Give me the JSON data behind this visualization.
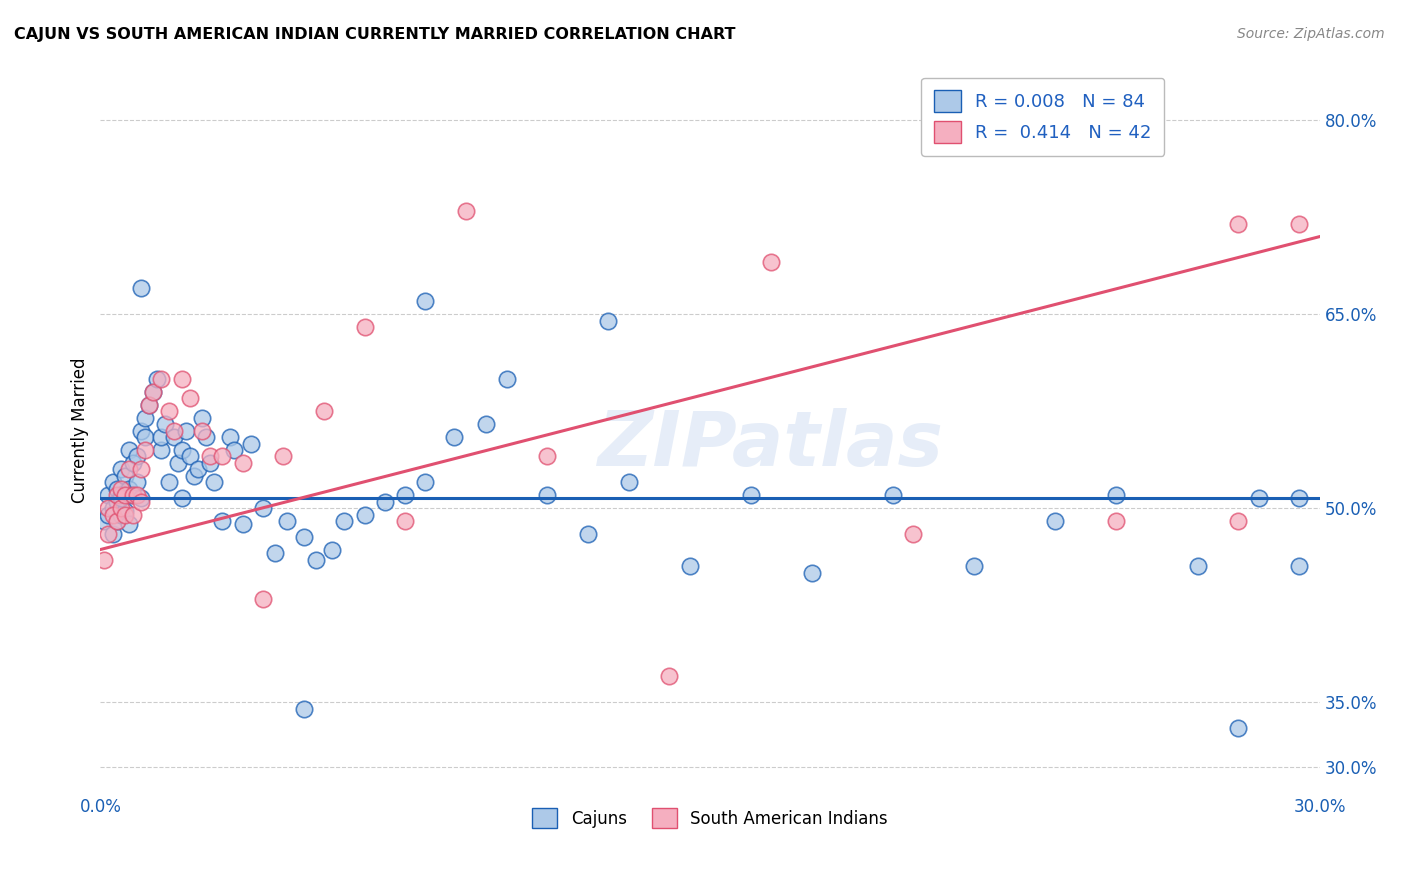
{
  "title": "CAJUN VS SOUTH AMERICAN INDIAN CURRENTLY MARRIED CORRELATION CHART",
  "source": "Source: ZipAtlas.com",
  "ylabel": "Currently Married",
  "xlim": [
    0.0,
    0.3
  ],
  "ylim": [
    0.28,
    0.84
  ],
  "ytick_vals": [
    0.3,
    0.35,
    0.5,
    0.65,
    0.8
  ],
  "ytick_labels": [
    "30.0%",
    "35.0%",
    "50.0%",
    "65.0%",
    "80.0%"
  ],
  "xtick_vals": [
    0.0,
    0.05,
    0.1,
    0.15,
    0.2,
    0.25,
    0.3
  ],
  "xtick_labels": [
    "0.0%",
    "",
    "",
    "",
    "",
    "",
    "30.0%"
  ],
  "cajun_R": 0.008,
  "cajun_N": 84,
  "sai_R": 0.414,
  "sai_N": 42,
  "cajun_color": "#adc9e8",
  "sai_color": "#f5afc0",
  "cajun_line_color": "#1a5fb4",
  "sai_line_color": "#e05070",
  "legend_color": "#2060c0",
  "background_color": "#ffffff",
  "grid_color": "#cccccc",
  "watermark": "ZIPatlas",
  "cajun_line_y0": 0.508,
  "cajun_line_y1": 0.508,
  "sai_line_y0": 0.468,
  "sai_line_y1": 0.71,
  "cajun_x": [
    0.001,
    0.002,
    0.002,
    0.003,
    0.003,
    0.003,
    0.004,
    0.004,
    0.004,
    0.005,
    0.005,
    0.005,
    0.006,
    0.006,
    0.006,
    0.007,
    0.007,
    0.007,
    0.008,
    0.008,
    0.009,
    0.009,
    0.01,
    0.01,
    0.011,
    0.011,
    0.012,
    0.013,
    0.014,
    0.015,
    0.015,
    0.016,
    0.017,
    0.018,
    0.019,
    0.02,
    0.021,
    0.022,
    0.023,
    0.024,
    0.025,
    0.026,
    0.027,
    0.028,
    0.03,
    0.032,
    0.033,
    0.035,
    0.037,
    0.04,
    0.043,
    0.046,
    0.05,
    0.053,
    0.057,
    0.06,
    0.065,
    0.07,
    0.075,
    0.08,
    0.087,
    0.095,
    0.1,
    0.11,
    0.12,
    0.13,
    0.145,
    0.16,
    0.175,
    0.195,
    0.215,
    0.235,
    0.25,
    0.27,
    0.28,
    0.285,
    0.295,
    0.295,
    0.125,
    0.08,
    0.05,
    0.02,
    0.01,
    0.005
  ],
  "cajun_y": [
    0.49,
    0.51,
    0.495,
    0.52,
    0.5,
    0.48,
    0.515,
    0.505,
    0.49,
    0.53,
    0.51,
    0.495,
    0.525,
    0.51,
    0.498,
    0.545,
    0.515,
    0.488,
    0.535,
    0.51,
    0.54,
    0.52,
    0.56,
    0.67,
    0.57,
    0.555,
    0.58,
    0.59,
    0.6,
    0.545,
    0.555,
    0.565,
    0.52,
    0.555,
    0.535,
    0.545,
    0.56,
    0.54,
    0.525,
    0.53,
    0.57,
    0.555,
    0.535,
    0.52,
    0.49,
    0.555,
    0.545,
    0.488,
    0.55,
    0.5,
    0.465,
    0.49,
    0.478,
    0.46,
    0.468,
    0.49,
    0.495,
    0.505,
    0.51,
    0.52,
    0.555,
    0.565,
    0.6,
    0.51,
    0.48,
    0.52,
    0.455,
    0.51,
    0.45,
    0.51,
    0.455,
    0.49,
    0.51,
    0.455,
    0.33,
    0.508,
    0.455,
    0.508,
    0.645,
    0.66,
    0.345,
    0.508,
    0.508,
    0.508
  ],
  "sai_x": [
    0.001,
    0.002,
    0.002,
    0.003,
    0.004,
    0.004,
    0.005,
    0.005,
    0.006,
    0.006,
    0.007,
    0.008,
    0.008,
    0.009,
    0.01,
    0.01,
    0.011,
    0.012,
    0.013,
    0.015,
    0.017,
    0.018,
    0.02,
    0.022,
    0.025,
    0.027,
    0.03,
    0.035,
    0.04,
    0.045,
    0.055,
    0.065,
    0.075,
    0.09,
    0.11,
    0.14,
    0.165,
    0.2,
    0.25,
    0.28,
    0.28,
    0.295
  ],
  "sai_y": [
    0.46,
    0.48,
    0.5,
    0.495,
    0.51,
    0.49,
    0.5,
    0.515,
    0.51,
    0.495,
    0.53,
    0.51,
    0.495,
    0.51,
    0.53,
    0.505,
    0.545,
    0.58,
    0.59,
    0.6,
    0.575,
    0.56,
    0.6,
    0.585,
    0.56,
    0.54,
    0.54,
    0.535,
    0.43,
    0.54,
    0.575,
    0.64,
    0.49,
    0.73,
    0.54,
    0.37,
    0.69,
    0.48,
    0.49,
    0.72,
    0.49,
    0.72
  ]
}
